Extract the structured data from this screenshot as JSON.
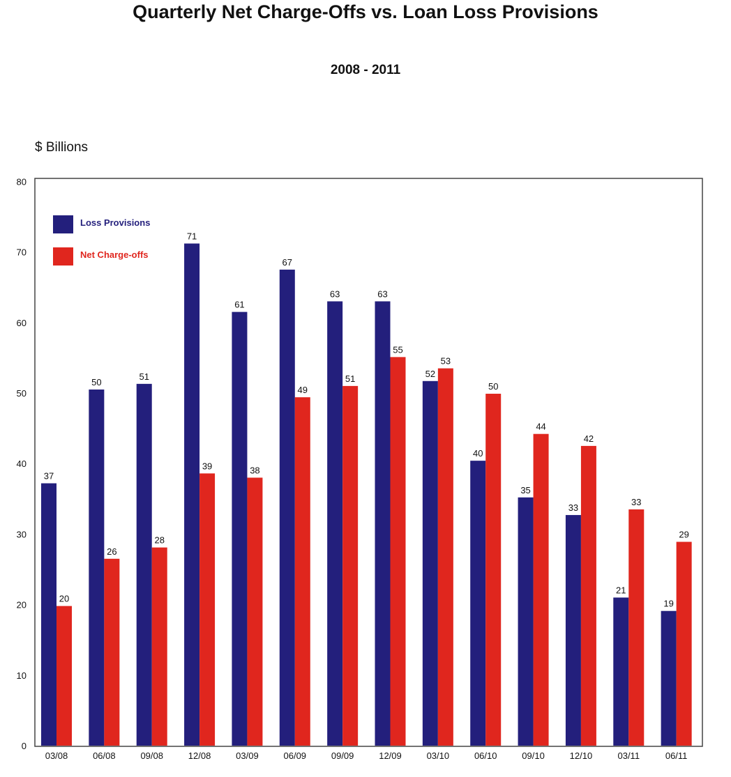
{
  "chart_data": {
    "type": "bar",
    "title": "Quarterly Net Charge-Offs vs. Loan Loss Provisions",
    "subtitle": "2008 - 2011",
    "ylabel": "$ Billions",
    "xlabel": "",
    "ylim": [
      0,
      80
    ],
    "yticks": [
      "0",
      "10",
      "20",
      "30",
      "40",
      "50",
      "60",
      "70",
      "80"
    ],
    "categories": [
      "03/08",
      "06/08",
      "09/08",
      "12/08",
      "03/09",
      "06/09",
      "09/09",
      "12/09",
      "03/10",
      "06/10",
      "09/10",
      "12/10",
      "03/11",
      "06/11"
    ],
    "series": [
      {
        "name": "Loss Provisions",
        "color": "#231f7c",
        "values": [
          37,
          50,
          51,
          71,
          61,
          67,
          63,
          63,
          52,
          40,
          35,
          33,
          21,
          19
        ],
        "positions": [
          37.2,
          50.5,
          51.3,
          71.2,
          61.5,
          67.5,
          63.0,
          63.0,
          51.7,
          40.4,
          35.2,
          32.7,
          21.0,
          19.1
        ]
      },
      {
        "name": "Net Charge-offs",
        "color": "#e0261e",
        "values": [
          20,
          26,
          28,
          39,
          38,
          49,
          51,
          55,
          53,
          50,
          44,
          42,
          33,
          29
        ],
        "positions": [
          19.8,
          26.5,
          28.1,
          38.6,
          38.0,
          49.4,
          51.0,
          55.1,
          53.5,
          49.9,
          44.2,
          42.5,
          33.5,
          28.9
        ]
      }
    ],
    "grid": false,
    "legend_position": "top-left"
  }
}
